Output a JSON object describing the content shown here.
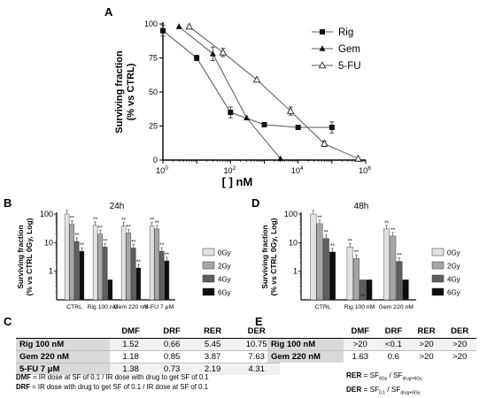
{
  "panel_labels": {
    "A": "A",
    "B": "B",
    "C": "C",
    "D": "D",
    "E": "E"
  },
  "chart_data": [
    {
      "id": "A",
      "type": "line",
      "title": "",
      "xlabel": "[ ] nM",
      "ylabel_line1": "Surviving fraction",
      "ylabel_line2": "(% vs CTRL)",
      "x_scale": "log",
      "x_tick_labels": [
        "10^0",
        "10^2",
        "10^4",
        "10^6"
      ],
      "x_ticks": [
        {
          "base": "10",
          "exp": "0",
          "value": 1
        },
        {
          "base": "10",
          "exp": "2",
          "value": 100
        },
        {
          "base": "10",
          "exp": "4",
          "value": 10000
        },
        {
          "base": "10",
          "exp": "6",
          "value": 1000000
        }
      ],
      "ylim": [
        0,
        100
      ],
      "y_ticks": [
        "0",
        "25",
        "50",
        "75",
        "100"
      ],
      "legend": "top-right",
      "series": [
        {
          "name": "Rig",
          "marker": "square-filled",
          "x": [
            1,
            10,
            100,
            1000,
            10000,
            100000
          ],
          "y": [
            95,
            75,
            35,
            26,
            24,
            24
          ],
          "err": [
            4,
            2,
            4,
            0,
            0,
            4
          ]
        },
        {
          "name": "Gem",
          "marker": "triangle-filled",
          "x": [
            3,
            30,
            300,
            3000
          ],
          "y": [
            98,
            78,
            31,
            1
          ],
          "err": [
            0,
            5,
            0,
            0
          ]
        },
        {
          "name": "5-FU",
          "marker": "triangle-open",
          "x": [
            6,
            60,
            600,
            6000,
            60000,
            600000
          ],
          "y": [
            98,
            79,
            59,
            36,
            12,
            1
          ],
          "err": [
            0,
            3,
            0,
            3,
            2,
            0
          ]
        }
      ]
    },
    {
      "id": "B",
      "type": "bar",
      "title": "24h",
      "ylabel_line1": "Surviving fraction",
      "ylabel_line2": "(% vs CTRL 0Gy, Log)",
      "y_scale": "log",
      "y_ticks": [
        "1",
        "10",
        "100"
      ],
      "categories": [
        "CTRL",
        "Rig 100 nM",
        "Gem 220 nM",
        "5-FU 7 μM"
      ],
      "legend": "right",
      "series": [
        {
          "name": "0Gy",
          "color": "#e2e2e2",
          "values": [
            100,
            40,
            38,
            38
          ]
        },
        {
          "name": "2Gy",
          "color": "#a6a6a6",
          "values": [
            44,
            20,
            22,
            30
          ]
        },
        {
          "name": "4Gy",
          "color": "#5e5e5e",
          "values": [
            11,
            7,
            6.5,
            5
          ]
        },
        {
          "name": "6Gy",
          "color": "#0d0d0d",
          "values": [
            5,
            0.5,
            1.3,
            2.3
          ]
        }
      ],
      "stars": "**"
    },
    {
      "id": "D",
      "type": "bar",
      "title": "48h",
      "ylabel_line1": "Surviving fraction",
      "ylabel_line2": "(% vs CTRL 0Gy, Log)",
      "y_scale": "log",
      "y_ticks": [
        "1",
        "10",
        "100"
      ],
      "categories": [
        "CTRL",
        "Rig 100 nM",
        "Gem 220 nM"
      ],
      "legend": "right",
      "series": [
        {
          "name": "0Gy",
          "color": "#e2e2e2",
          "values": [
            100,
            7,
            30
          ]
        },
        {
          "name": "2Gy",
          "color": "#a6a6a6",
          "values": [
            46,
            2.8,
            17
          ]
        },
        {
          "name": "4Gy",
          "color": "#5e5e5e",
          "values": [
            14,
            0.5,
            2.2
          ]
        },
        {
          "name": "6Gy",
          "color": "#0d0d0d",
          "values": [
            4.7,
            0.5,
            0.5
          ]
        }
      ],
      "stars": "**"
    },
    {
      "id": "C",
      "type": "table",
      "columns": [
        "",
        "DMF",
        "DRF",
        "RER",
        "DER"
      ],
      "rows": [
        [
          "Rig 100 nM",
          "1.52",
          "0.66",
          "5.45",
          "10.75"
        ],
        [
          "Gem 220 nM",
          "1.18",
          "0.85",
          "3.87",
          "7.63"
        ],
        [
          "5-FU 7 μM",
          "1.38",
          "0.73",
          "2.19",
          "4.31"
        ]
      ]
    },
    {
      "id": "E",
      "type": "table",
      "columns": [
        "",
        "DMF",
        "DRF",
        "RER",
        "DER"
      ],
      "rows": [
        [
          "Rig 100 nM",
          ">20",
          "<0.1",
          ">20",
          ">20"
        ],
        [
          "Gem 220 nM",
          "1.63",
          "0.6",
          ">20",
          ">20"
        ]
      ]
    }
  ],
  "notes": {
    "dmf_term": "DMF",
    "dmf_text": " = IR dose at SF of 0.1 / IR dose with drug to get SF of 0.1",
    "drf_term": "DRF",
    "drf_text": " = IR dose with drug to get SF of 0.1 / IR dose at SF of 0.1",
    "rer_term": "RER",
    "rer_eq": " = SF",
    "rer_sub1": "6Gy",
    "rer_div": " / SF",
    "rer_sub2": "drug+6Gy",
    "der_term": "DER",
    "der_eq": " = SF",
    "der_sub1": "0.1",
    "der_div": " / SF",
    "der_sub2": "drug+6Gy"
  }
}
